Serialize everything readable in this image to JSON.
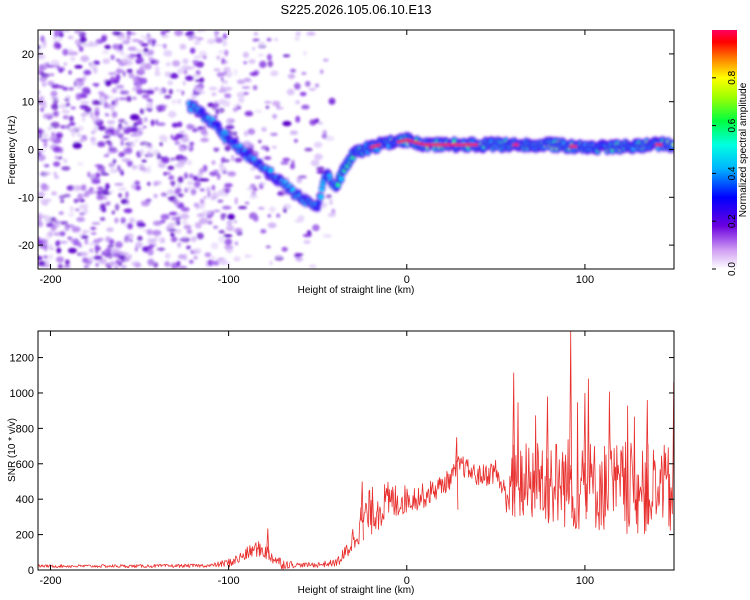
{
  "title": "S225.2026.105.06.10.E13",
  "colors": {
    "signal_line": "#e8302e",
    "scatter_dark": "#5a00c8",
    "scatter_light": "#d8c4f6",
    "frame": "#000000"
  },
  "chart_data": [
    {
      "type": "heatmap",
      "name": "spectrogram",
      "title": "S225.2026.105.06.10.E13",
      "xlabel": "Height of straight line (km)",
      "ylabel": "Frequency (Hz)",
      "xlim": [
        -207,
        150
      ],
      "ylim": [
        -25,
        25
      ],
      "xticks": [
        -200,
        -100,
        0,
        100
      ],
      "yticks": [
        -20,
        -10,
        0,
        10,
        20
      ],
      "colorbar": {
        "label": "Normalized spectral amplitude",
        "range": [
          0,
          1
        ],
        "ticks": [
          0.0,
          0.2,
          0.4,
          0.6,
          0.8
        ],
        "colormap": "rainbow (magenta-white → blue → cyan → green → yellow → red)"
      },
      "ridge": {
        "description": "Main spectral ridge frequency vs height",
        "x": [
          -120,
          -110,
          -100,
          -90,
          -80,
          -70,
          -60,
          -50,
          -45,
          -40,
          -35,
          -30,
          -25,
          -20,
          -15,
          -10,
          -5,
          0,
          10,
          20,
          40,
          60,
          80,
          100,
          120,
          140,
          150
        ],
        "y": [
          9,
          6,
          2,
          -1,
          -4,
          -7,
          -10,
          -12,
          -5,
          -8,
          -4,
          -1,
          0,
          0.5,
          1,
          1.5,
          1.5,
          2,
          1,
          1,
          1,
          1,
          1,
          0.5,
          0.5,
          1,
          1
        ]
      }
    },
    {
      "type": "line",
      "name": "snr",
      "xlabel": "Height of straight line (km)",
      "ylabel": "SNR (10 * v/v)",
      "xlim": [
        -207,
        150
      ],
      "ylim": [
        0,
        1350
      ],
      "xticks": [
        -200,
        -100,
        0,
        100
      ],
      "yticks": [
        0,
        200,
        400,
        600,
        800,
        1000,
        1200
      ],
      "baseline_envelope": {
        "x": [
          -207,
          -150,
          -110,
          -100,
          -95,
          -90,
          -85,
          -80,
          -75,
          -70,
          -60,
          -50,
          -40,
          -35,
          -30,
          -25,
          -20,
          -15,
          -10,
          -5,
          0,
          5,
          10,
          15,
          20,
          25,
          30,
          35,
          40,
          45,
          50,
          55,
          58,
          60,
          65,
          70,
          75,
          80,
          85,
          90,
          95,
          100,
          110,
          120,
          130,
          140,
          150
        ],
        "y": [
          22,
          22,
          25,
          40,
          60,
          90,
          120,
          110,
          70,
          35,
          28,
          30,
          40,
          80,
          180,
          280,
          330,
          360,
          380,
          390,
          400,
          410,
          420,
          450,
          480,
          520,
          600,
          560,
          530,
          540,
          560,
          430,
          430,
          500,
          480,
          500,
          520,
          500,
          480,
          500,
          470,
          480,
          470,
          460,
          460,
          450,
          440
        ]
      },
      "noise_amplitude": {
        "x": [
          -207,
          -110,
          -100,
          -80,
          -60,
          -40,
          -30,
          -20,
          -10,
          0,
          20,
          40,
          55,
          60,
          80,
          100,
          150
        ],
        "y": [
          8,
          10,
          25,
          50,
          12,
          20,
          80,
          140,
          120,
          80,
          60,
          60,
          80,
          220,
          260,
          260,
          260
        ]
      },
      "notable_peaks": [
        {
          "x": -78,
          "y": 235
        },
        {
          "x": -25,
          "y": 500
        },
        {
          "x": 28,
          "y": 750
        },
        {
          "x": 60,
          "y": 1115
        },
        {
          "x": 79,
          "y": 980
        },
        {
          "x": 92,
          "y": 1350
        },
        {
          "x": 100,
          "y": 1000
        },
        {
          "x": 135,
          "y": 960
        }
      ]
    }
  ]
}
